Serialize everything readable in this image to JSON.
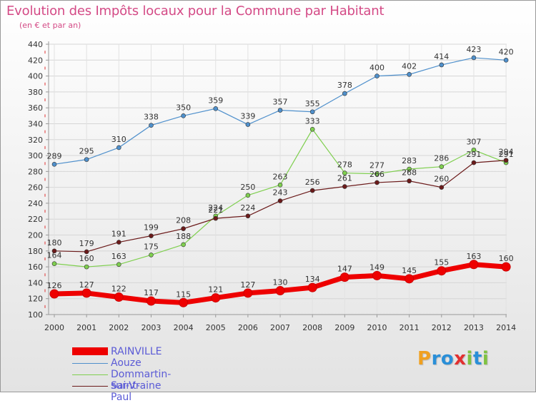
{
  "title": "Evolution des Impôts locaux pour la Commune par Habitant",
  "subtitle": "(en € et par an)",
  "logo": {
    "letters": [
      {
        "ch": "P",
        "color": "#f0a020"
      },
      {
        "ch": "r",
        "color": "#2a8fd8"
      },
      {
        "ch": "o",
        "color": "#2a8fd8"
      },
      {
        "ch": "x",
        "color": "#e23030"
      },
      {
        "ch": "i",
        "color": "#7fc241"
      },
      {
        "ch": "t",
        "color": "#2a8fd8"
      },
      {
        "ch": "i",
        "color": "#7fc241"
      }
    ]
  },
  "chart_data": {
    "type": "line",
    "title": "Evolution des Impôts locaux pour la Commune par Habitant",
    "ylabel": "(en € et par an)",
    "xlabel": "",
    "categories": [
      "2000",
      "2001",
      "2002",
      "2003",
      "2004",
      "2005",
      "2006",
      "2007",
      "2008",
      "2009",
      "2010",
      "2011",
      "2012",
      "2013",
      "2014"
    ],
    "ylim": [
      100,
      440
    ],
    "yticks": [
      100,
      120,
      140,
      160,
      180,
      200,
      220,
      240,
      260,
      280,
      300,
      320,
      340,
      360,
      380,
      400,
      420,
      440
    ],
    "grid": true,
    "legend_position": "bottom-left",
    "series": [
      {
        "name": "Aouze",
        "color": "#4f90cc",
        "thick": false,
        "values": [
          289,
          295,
          310,
          338,
          350,
          359,
          339,
          357,
          355,
          378,
          400,
          402,
          414,
          423,
          420
        ]
      },
      {
        "name": "Dommartin-sur-Vraine",
        "color": "#7fcf4f",
        "thick": false,
        "values": [
          164,
          160,
          163,
          175,
          188,
          224,
          250,
          263,
          333,
          278,
          277,
          283,
          286,
          307,
          291
        ]
      },
      {
        "name": "Saint-Paul",
        "color": "#6b1a1a",
        "thick": false,
        "values": [
          180,
          179,
          191,
          199,
          208,
          221,
          224,
          243,
          256,
          261,
          266,
          268,
          260,
          291,
          294
        ]
      },
      {
        "name": "RAINVILLE",
        "color": "#ee0000",
        "thick": true,
        "values": [
          126,
          127,
          122,
          117,
          115,
          121,
          127,
          130,
          134,
          147,
          149,
          145,
          155,
          163,
          160
        ]
      }
    ],
    "legend_order": [
      "RAINVILLE",
      "Aouze",
      "Dommartin-sur-Vraine",
      "Saint-Paul"
    ]
  }
}
